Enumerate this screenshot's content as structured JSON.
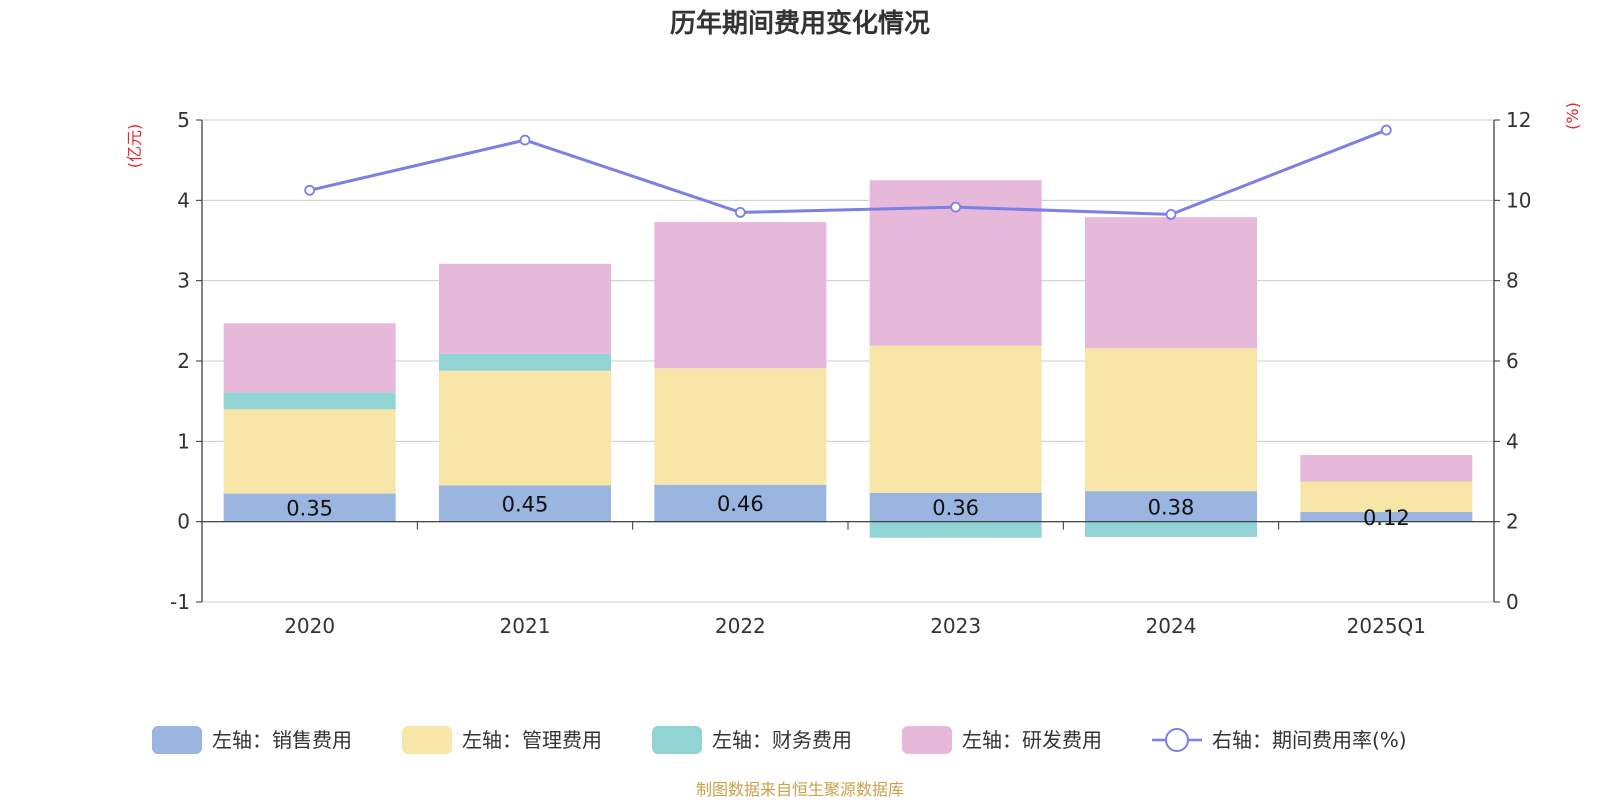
{
  "title": "历年期间费用变化情况",
  "source_note": "制图数据来自恒生聚源数据库",
  "colors": {
    "sales": "#9bb5e1",
    "admin": "#f7e6a7",
    "finance": "#92d4d4",
    "rd": "#e6b8d9",
    "rate": "#7b7fe6",
    "grid": "#cccccc",
    "axis": "#333333",
    "unit": "#e4262b",
    "source": "#c8a14a"
  },
  "chart_data": {
    "type": "bar",
    "stacked": true,
    "categories": [
      "2020",
      "2021",
      "2022",
      "2023",
      "2024",
      "2025Q1"
    ],
    "left_axis": {
      "unit": "(亿元)",
      "ylim": [
        -1,
        5
      ],
      "ticks": [
        "-1",
        "0",
        "1",
        "2",
        "3",
        "4",
        "5"
      ]
    },
    "right_axis": {
      "unit": "(%)",
      "ylim": [
        0,
        12
      ],
      "ticks": [
        "0",
        "2",
        "4",
        "6",
        "8",
        "10",
        "12"
      ]
    },
    "series": [
      {
        "key": "sales",
        "name": "左轴：销售费用",
        "type": "bar",
        "values": [
          0.35,
          0.45,
          0.46,
          0.36,
          0.38,
          0.12
        ],
        "labels": [
          "0.35",
          "0.45",
          "0.46",
          "0.36",
          "0.38",
          "0.12"
        ]
      },
      {
        "key": "admin",
        "name": "左轴：管理费用",
        "type": "bar",
        "values": [
          1.05,
          1.43,
          1.45,
          1.83,
          1.78,
          0.38
        ]
      },
      {
        "key": "finance",
        "name": "左轴：财务费用",
        "type": "bar",
        "values": [
          0.21,
          0.21,
          -0.01,
          -0.2,
          -0.19,
          0.0
        ]
      },
      {
        "key": "rd",
        "name": "左轴：研发费用",
        "type": "bar",
        "values": [
          0.86,
          1.12,
          1.82,
          2.06,
          1.63,
          0.33
        ]
      },
      {
        "key": "rate",
        "name": "右轴：期间费用率(%)",
        "type": "line",
        "axis": "right",
        "values": [
          10.25,
          11.5,
          9.7,
          9.83,
          9.65,
          11.75
        ]
      }
    ],
    "grid": true,
    "legend_position": "bottom"
  }
}
